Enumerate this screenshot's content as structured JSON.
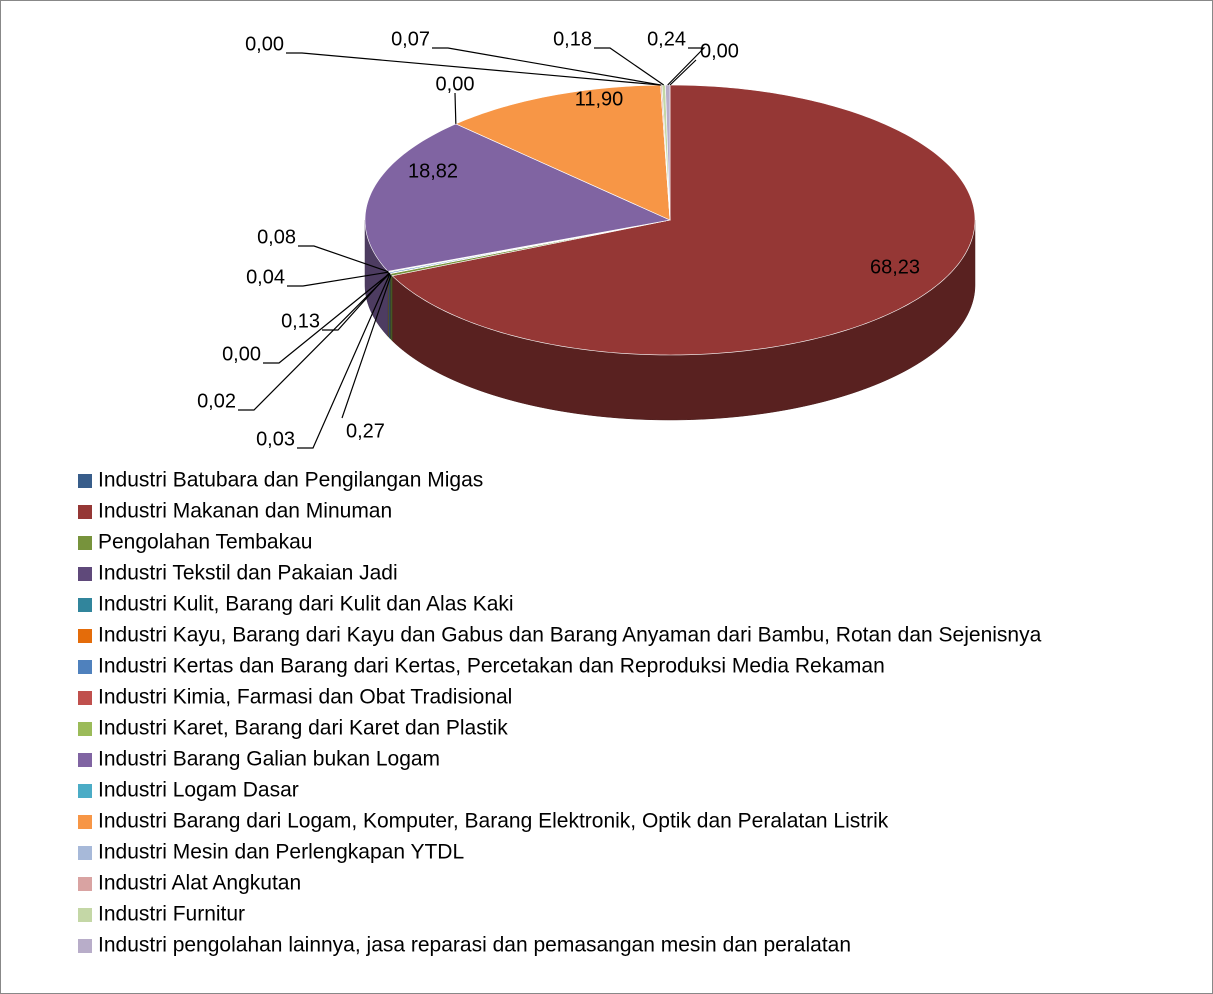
{
  "chart_data": {
    "type": "pie3d",
    "categories": [
      "Industri Batubara dan Pengilangan Migas",
      "Industri Makanan dan Minuman",
      "Pengolahan Tembakau",
      "Industri Tekstil dan Pakaian Jadi",
      "Industri Kulit, Barang dari Kulit dan Alas Kaki",
      "Industri Kayu, Barang dari Kayu dan Gabus dan Barang Anyaman dari Bambu, Rotan dan Sejenisnya",
      "Industri Kertas dan Barang dari Kertas, Percetakan dan Reproduksi Media Rekaman",
      "Industri Kimia, Farmasi dan Obat Tradisional",
      "Industri Karet, Barang dari Karet dan Plastik",
      "Industri Barang Galian bukan Logam",
      "Industri Logam Dasar",
      "Industri Barang dari Logam, Komputer, Barang Elektronik, Optik dan Peralatan Listrik",
      "Industri Mesin dan Perlengkapan YTDL",
      "Industri Alat Angkutan",
      "Industri Furnitur",
      "Industri pengolahan lainnya, jasa reparasi dan pemasangan mesin dan peralatan"
    ],
    "values": [
      0.0,
      68.23,
      0.27,
      0.03,
      0.02,
      0.0,
      0.13,
      0.04,
      0.08,
      18.82,
      0.0,
      11.9,
      0.0,
      0.07,
      0.18,
      0.24
    ],
    "value_labels": [
      "0,00",
      "68,23",
      "0,27",
      "0,03",
      "0,02",
      "0,00",
      "0,13",
      "0,04",
      "0,08",
      "18,82",
      "0,00",
      "11,90",
      "0,00",
      "0,07",
      "0,18",
      "0,24"
    ],
    "colors": [
      "#385d8a",
      "#953735",
      "#77933c",
      "#5f497a",
      "#31859c",
      "#e46c0a",
      "#4f81bd",
      "#c0504d",
      "#9bbb59",
      "#8064a2",
      "#4bacc6",
      "#f79646",
      "#a7b9d9",
      "#d9a3a2",
      "#c4d7a6",
      "#b8adc9"
    ],
    "legend": "bottom"
  }
}
